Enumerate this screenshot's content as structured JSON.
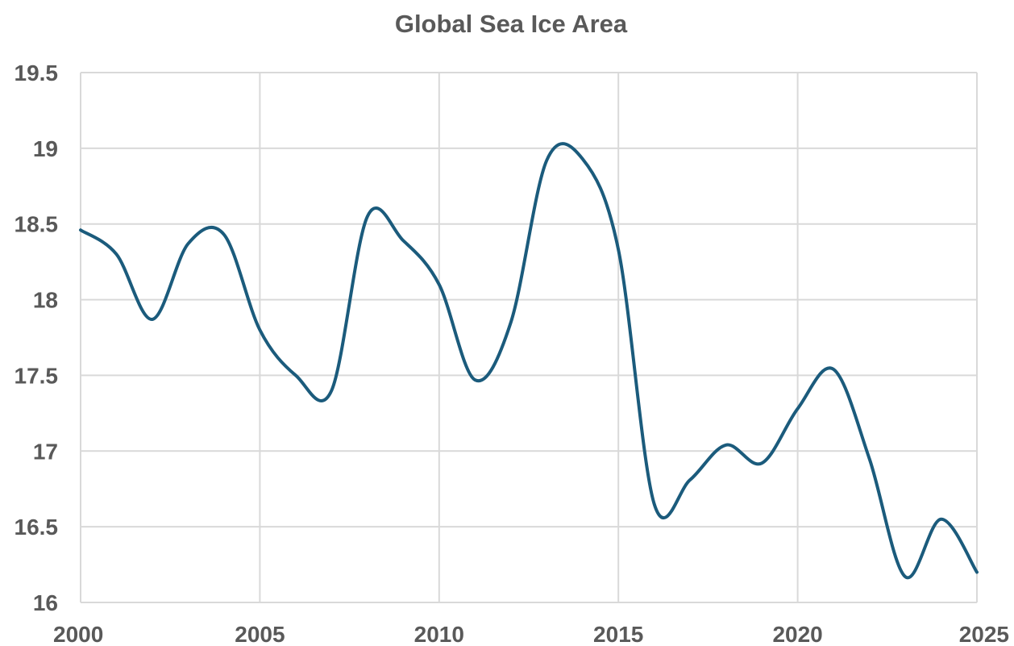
{
  "chart_data": {
    "type": "line",
    "title": "Global Sea Ice Area",
    "xlabel": "",
    "ylabel": "",
    "xlim": [
      2000,
      2025
    ],
    "ylim": [
      16,
      19.5
    ],
    "x_ticks": [
      2000,
      2005,
      2010,
      2015,
      2020,
      2025
    ],
    "x_tick_labels": [
      "2000",
      "2005",
      "2010",
      "2015",
      "2020",
      "2025"
    ],
    "y_ticks": [
      16,
      16.5,
      17,
      17.5,
      18,
      18.5,
      19,
      19.5
    ],
    "y_tick_labels": [
      "16",
      "16.5",
      "17",
      "17.5",
      "18",
      "18.5",
      "19",
      "19.5"
    ],
    "grid": true,
    "legend": "none",
    "smooth": true,
    "series": [
      {
        "color": "#1b5b7c",
        "x": [
          2000,
          2001,
          2002,
          2003,
          2004,
          2005,
          2006,
          2007,
          2008,
          2009,
          2010,
          2011,
          2012,
          2013,
          2014,
          2015,
          2016,
          2017,
          2018,
          2019,
          2020,
          2021,
          2022,
          2023,
          2024,
          2025
        ],
        "values": [
          18.46,
          18.3,
          17.87,
          18.37,
          18.43,
          17.8,
          17.5,
          17.4,
          18.55,
          18.39,
          18.1,
          17.47,
          17.85,
          18.92,
          18.93,
          18.33,
          16.65,
          16.81,
          17.04,
          16.92,
          17.28,
          17.54,
          16.95,
          16.17,
          16.55,
          16.2
        ]
      }
    ]
  }
}
